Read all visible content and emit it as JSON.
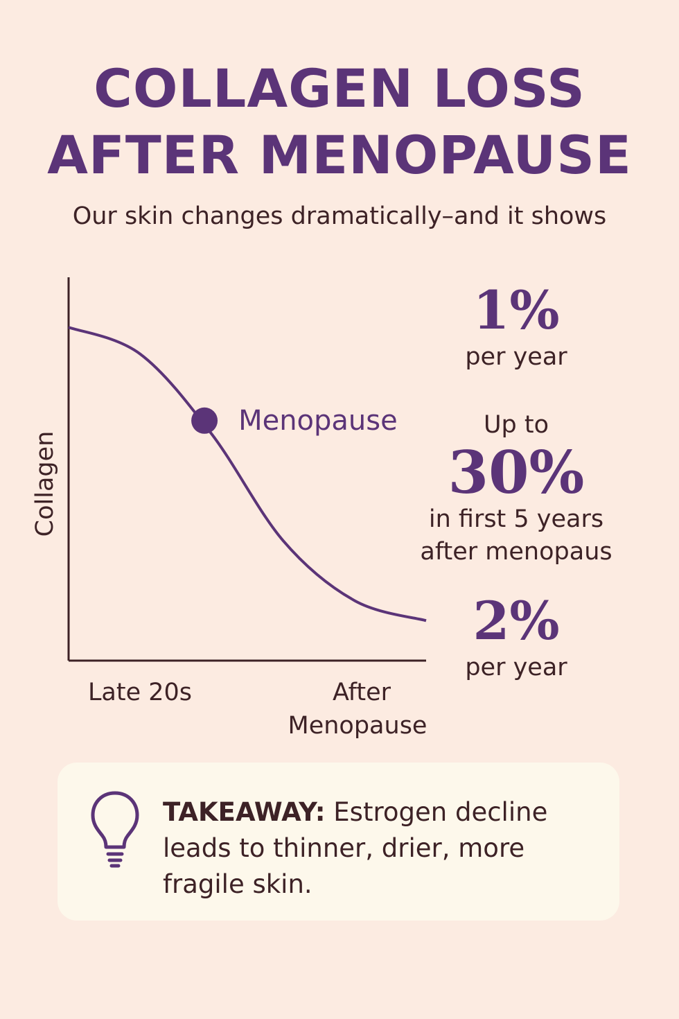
{
  "title_line1": "COLLAGEN LOSS",
  "title_line2": "AFTER MENOPAUSE",
  "subtitle": "Our skin changes dramatically–and it shows",
  "colors": {
    "accent": "#5b3478",
    "text": "#3d2226",
    "background": "#fcebe1",
    "box": "#fdf8eb"
  },
  "chart_data": {
    "type": "line",
    "title": "",
    "xlabel": "",
    "ylabel": "Collagen",
    "x_tick_labels": [
      "Late 20s",
      "After Menopause"
    ],
    "x": [
      0,
      0.2,
      0.4,
      0.6,
      0.8,
      1.0
    ],
    "series": [
      {
        "name": "Collagen",
        "values": [
          100,
          92,
          68,
          36,
          18,
          12
        ]
      }
    ],
    "xlim": [
      0,
      1
    ],
    "ylim": [
      0,
      115
    ],
    "annotations": [
      {
        "label": "Menopause",
        "x": 0.38,
        "y": 72
      }
    ],
    "grid": false
  },
  "stats": [
    {
      "value": "1%",
      "caption": "per year"
    },
    {
      "prefix": "Up to",
      "value": "30%",
      "caption_lines": [
        "in first 5 years",
        "after menopaus"
      ]
    },
    {
      "value": "2%",
      "caption": "per year"
    }
  ],
  "takeaway": {
    "label": "TAKEAWAY:",
    "text": " Estrogen decline leads to thinner, drier, more fragile skin.",
    "icon": "lightbulb-icon"
  }
}
